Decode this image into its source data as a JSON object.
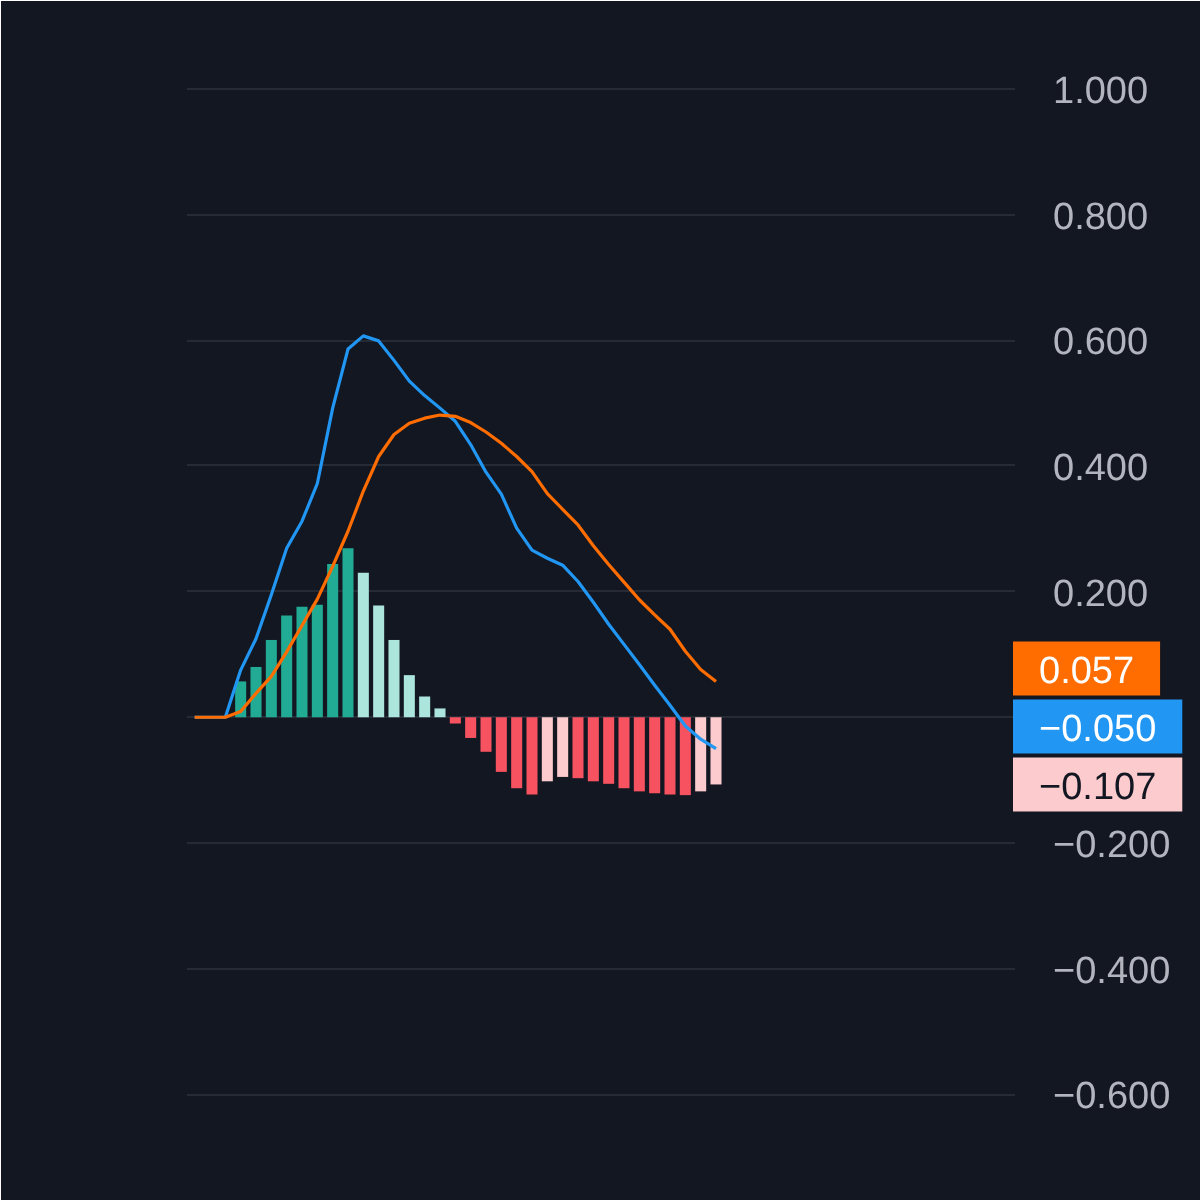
{
  "chart_data": {
    "type": "bar",
    "categories": [
      null,
      null,
      null,
      null,
      null,
      null,
      null,
      null,
      null,
      null,
      null,
      null,
      null,
      null,
      null,
      null,
      null,
      null,
      null,
      null,
      null,
      null,
      null,
      null,
      null,
      null,
      null,
      null,
      null,
      null,
      null,
      null,
      null,
      null,
      null,
      null,
      null,
      null,
      null,
      null,
      null,
      null,
      null,
      null,
      null,
      null,
      null,
      null,
      null,
      null,
      null,
      null,
      null,
      null
    ],
    "series": [
      {
        "values": [
          null,
          null,
          null,
          0.057,
          0.08,
          0.123,
          0.162,
          0.176,
          0.179,
          0.244,
          0.269,
          0.23,
          0.178,
          0.123,
          0.067,
          0.033,
          0.014,
          -0.01,
          -0.033,
          -0.055,
          -0.087,
          -0.113,
          -0.123,
          -0.102,
          -0.095,
          -0.097,
          -0.102,
          -0.106,
          -0.113,
          -0.118,
          -0.121,
          -0.123,
          -0.124,
          -0.118,
          -0.107,
          null,
          null,
          null,
          null,
          null,
          null,
          null,
          null,
          null,
          null,
          null,
          null,
          null,
          null,
          null,
          null,
          null,
          null,
          null
        ],
        "colors": [
          null,
          null,
          null,
          "#22ab94",
          "#22ab94",
          "#22ab94",
          "#22ab94",
          "#22ab94",
          "#22ab94",
          "#22ab94",
          "#22ab94",
          "#ace5dc",
          "#ace5dc",
          "#ace5dc",
          "#ace5dc",
          "#ace5dc",
          "#ace5dc",
          "#f7525f",
          "#f7525f",
          "#f7525f",
          "#f7525f",
          "#f7525f",
          "#f7525f",
          "#fccbcd",
          "#fccbcd",
          "#f7525f",
          "#f7525f",
          "#f7525f",
          "#f7525f",
          "#f7525f",
          "#f7525f",
          "#f7525f",
          "#f7525f",
          "#fccbcd",
          "#fccbcd",
          null,
          null,
          null,
          null,
          null,
          null,
          null,
          null,
          null,
          null,
          null,
          null,
          null,
          null,
          null,
          null,
          null,
          null,
          null
        ]
      },
      {
        "type": "line",
        "color": "#2196f3",
        "values": [
          0,
          0,
          0,
          0.075,
          0.125,
          0.195,
          0.269,
          0.312,
          0.372,
          0.492,
          0.586,
          0.607,
          0.599,
          0.568,
          0.535,
          0.512,
          0.492,
          0.471,
          0.434,
          0.39,
          0.355,
          0.301,
          0.266,
          0.253,
          0.242,
          0.216,
          0.183,
          0.148,
          0.116,
          0.084,
          0.051,
          0.019,
          -0.014,
          -0.035,
          -0.05,
          null,
          null,
          null,
          null,
          null,
          null,
          null,
          null,
          null,
          null,
          null,
          null,
          null,
          null,
          null,
          null,
          null,
          null,
          null
        ]
      },
      {
        "type": "line",
        "color": "#ff6d00",
        "values": [
          0,
          0,
          0,
          0.009,
          0.038,
          0.065,
          0.104,
          0.146,
          0.188,
          0.24,
          0.296,
          0.36,
          0.415,
          0.45,
          0.468,
          0.476,
          0.481,
          0.479,
          0.469,
          0.454,
          0.436,
          0.415,
          0.391,
          0.356,
          0.331,
          0.306,
          0.273,
          0.243,
          0.215,
          0.187,
          0.163,
          0.14,
          0.105,
          0.076,
          0.057,
          null,
          null,
          null,
          null,
          null,
          null,
          null,
          null,
          null,
          null,
          null,
          null,
          null,
          null,
          null,
          null,
          null,
          null,
          null
        ]
      }
    ],
    "ylim": [
      -0.77,
      1.14
    ],
    "yticks": [
      {
        "value": 1,
        "label": "1.000"
      },
      {
        "value": 0.8,
        "label": "0.800"
      },
      {
        "value": 0.6,
        "label": "0.600"
      },
      {
        "value": 0.4,
        "label": "0.400"
      },
      {
        "value": 0.2,
        "label": "0.200"
      },
      {
        "value": 0,
        "label": null
      },
      {
        "value": -0.2,
        "label": "−0.200"
      },
      {
        "value": -0.4,
        "label": "−0.400"
      },
      {
        "value": -0.6,
        "label": "−0.600"
      }
    ],
    "annotations": [
      "0.057",
      "−0.050",
      "−0.107"
    ],
    "grid": "y",
    "tick_labels": "y"
  }
}
